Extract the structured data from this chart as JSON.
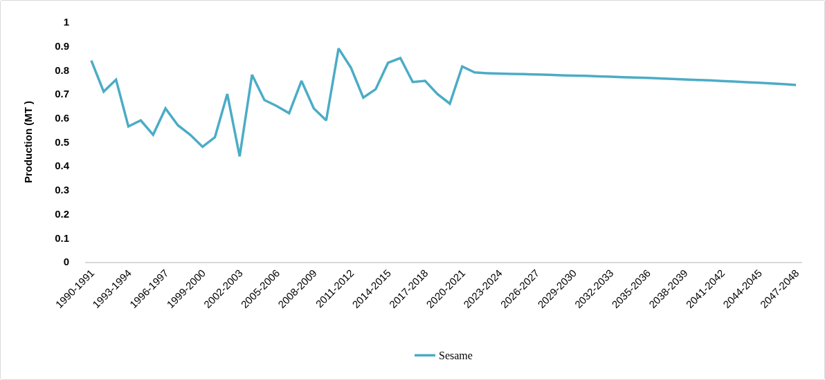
{
  "chart_data": {
    "type": "line",
    "ylabel": "Production (MT )",
    "categories": [
      "1990-1991",
      null,
      null,
      "1993-1994",
      null,
      null,
      "1996-1997",
      null,
      null,
      "1999-2000",
      null,
      null,
      "2002-2003",
      null,
      null,
      "2005-2006",
      null,
      null,
      "2008-2009",
      null,
      null,
      "2011-2012",
      null,
      null,
      "2014-2015",
      null,
      null,
      "2017-2018",
      null,
      null,
      "2020-2021",
      null,
      null,
      "2023-2024",
      null,
      null,
      "2026-2027",
      null,
      null,
      "2029-2030",
      null,
      null,
      "2032-2033",
      null,
      null,
      "2035-2036",
      null,
      null,
      "2038-2039",
      null,
      null,
      "2041-2042",
      null,
      null,
      "2044-2045",
      null,
      null,
      "2047-2048"
    ],
    "series": [
      {
        "name": "Sesame",
        "color": "#4bacc6",
        "values": [
          0.84,
          0.71,
          0.76,
          0.565,
          0.59,
          0.53,
          0.64,
          0.57,
          0.53,
          0.48,
          0.52,
          0.7,
          0.44,
          0.78,
          0.675,
          0.65,
          0.62,
          0.755,
          0.64,
          0.59,
          0.89,
          0.81,
          0.685,
          0.72,
          0.83,
          0.85,
          0.75,
          0.755,
          0.7,
          0.66,
          0.815,
          0.79,
          0.787,
          0.785,
          0.784,
          0.783,
          0.782,
          0.78,
          0.778,
          0.777,
          0.776,
          0.774,
          0.772,
          0.77,
          0.769,
          0.767,
          0.765,
          0.763,
          0.761,
          0.759,
          0.757,
          0.754,
          0.752,
          0.749,
          0.747,
          0.744,
          0.741,
          0.738
        ]
      }
    ],
    "ylim": [
      0,
      1
    ],
    "yticks": [
      0,
      0.1,
      0.2,
      0.3,
      0.4,
      0.5,
      0.6,
      0.7,
      0.8,
      0.9,
      1
    ],
    "grid": false,
    "legend": "bottom",
    "marker": "none"
  }
}
